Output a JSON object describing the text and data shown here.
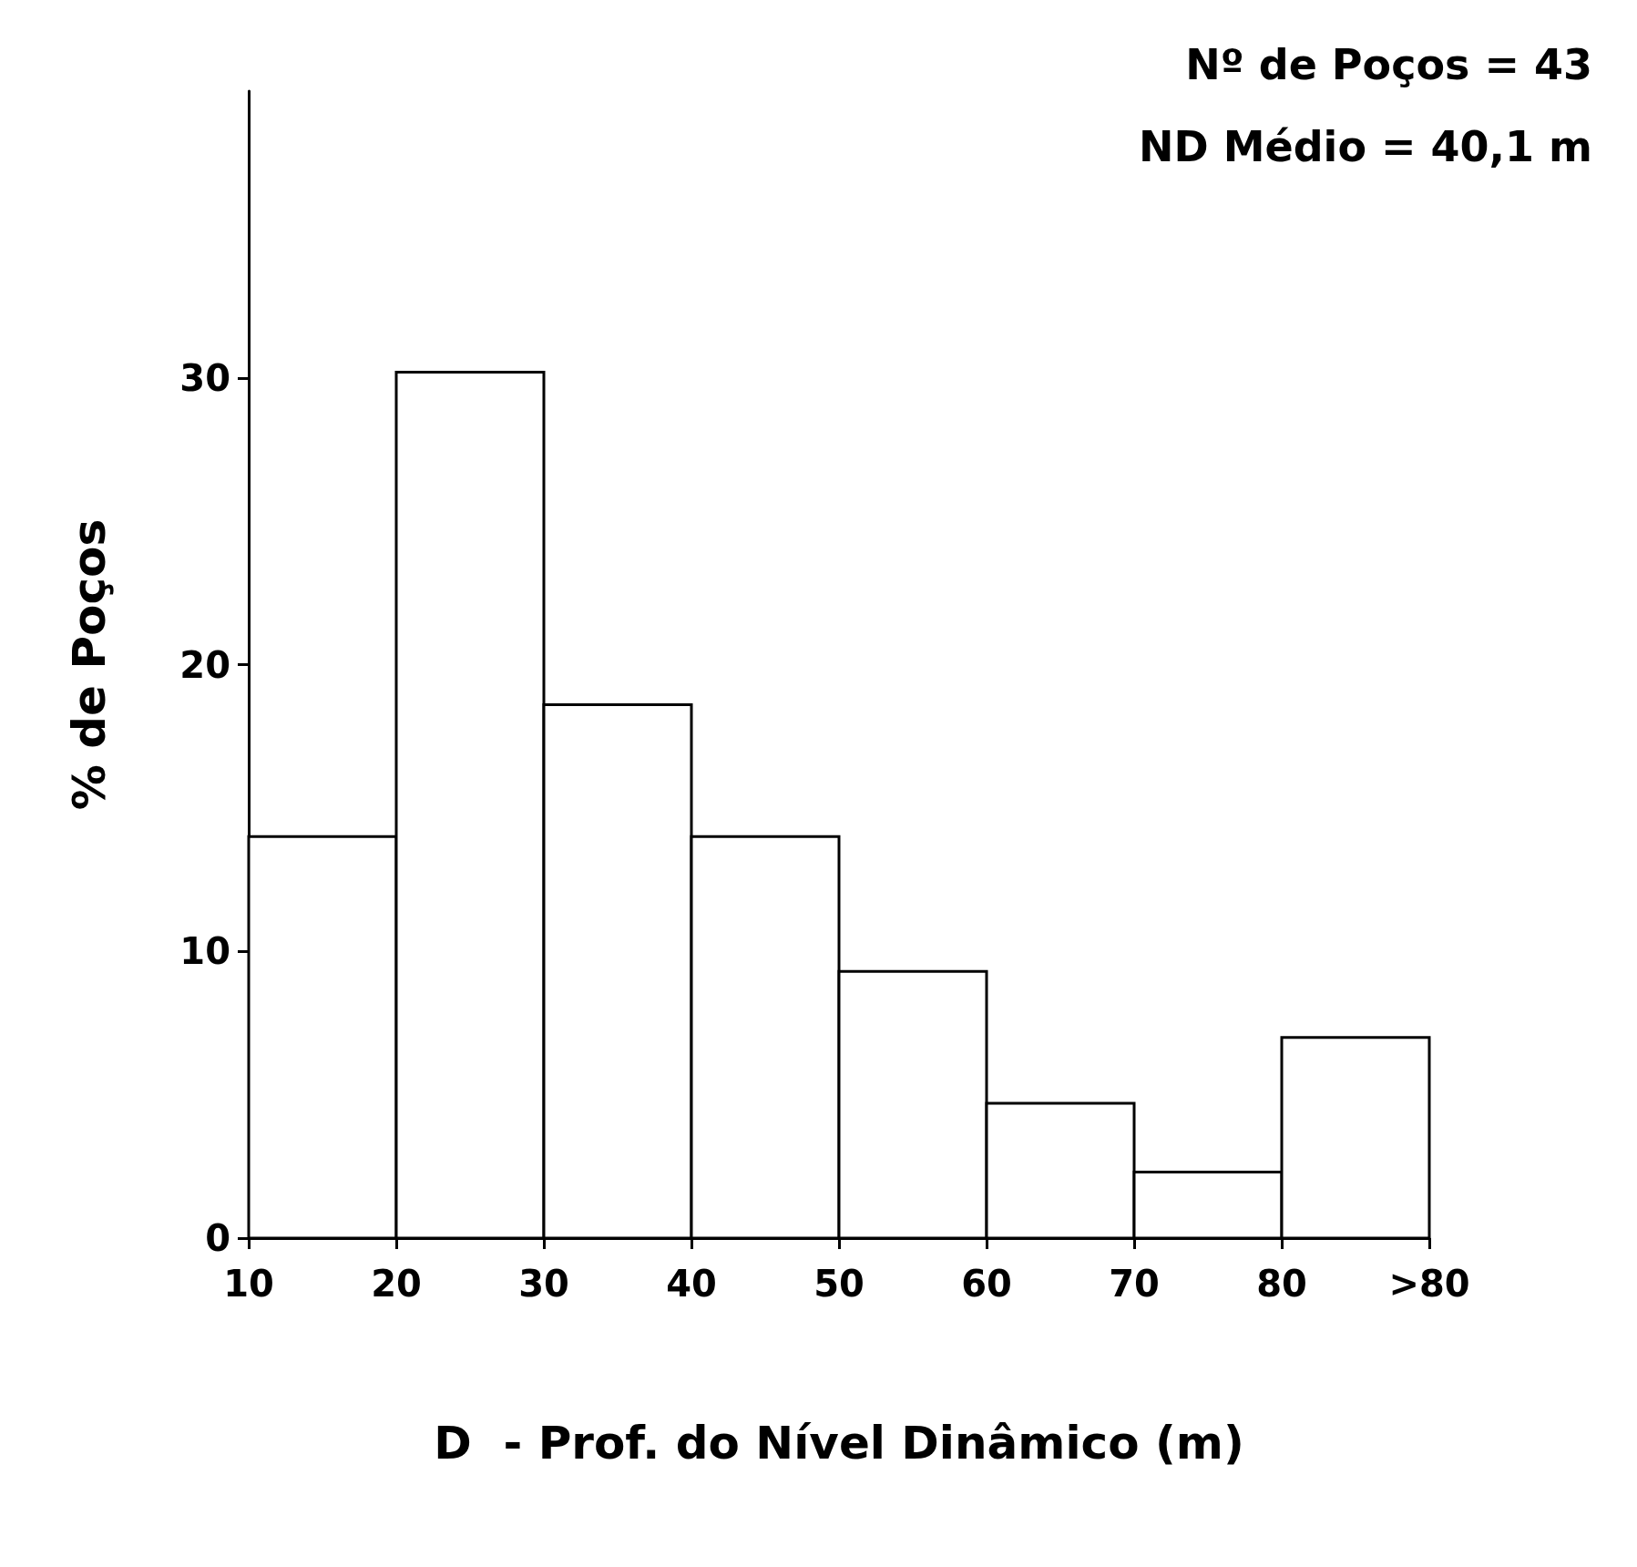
{
  "chart_data": {
    "type": "histogram",
    "xlabel": "D  - Prof. do Nível Dinâmico (m)",
    "ylabel": "% de Poços",
    "annotations": [
      "Nº de Poços = 43",
      "ND Médio = 40,1 m"
    ],
    "bins": [
      10,
      20,
      30,
      40,
      50,
      60,
      70,
      80,
      90
    ],
    "values": [
      14,
      30.2,
      18.6,
      14,
      9.3,
      4.7,
      2.3,
      7
    ],
    "color": "#ffffff",
    "xlim": [
      10,
      90
    ],
    "xticks": [
      10,
      20,
      30,
      40,
      50,
      60,
      70,
      80,
      {
        "value": 90,
        "label": ">80"
      }
    ],
    "ylim": [
      0,
      40
    ],
    "yticks": [
      0,
      10,
      20,
      30
    ],
    "grid": false
  }
}
